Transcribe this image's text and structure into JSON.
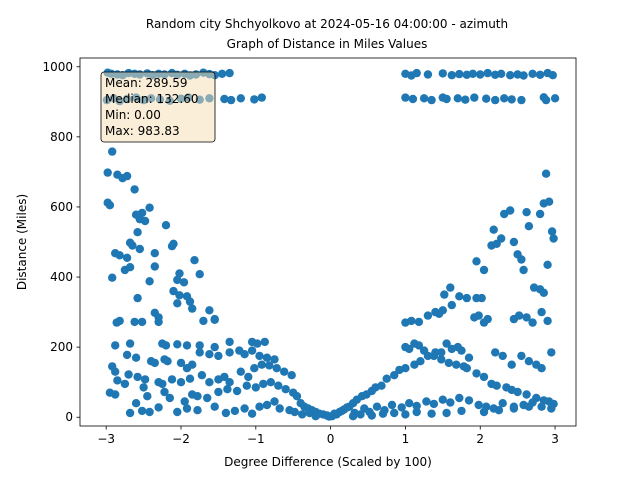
{
  "chart_data": {
    "type": "scatter",
    "title_line1": "Random city Shchyolkovo at 2024-05-16 04:00:00  - azimuth",
    "title_line2": "Graph of Distance in Miles Values",
    "xlabel": "Degree Difference (Scaled by 100)",
    "ylabel": "Distance (Miles)",
    "xlim": [
      -3.35,
      3.28
    ],
    "ylim": [
      -25,
      1025
    ],
    "xticks": [
      -3,
      -2,
      -1,
      0,
      1,
      2,
      3
    ],
    "xtick_labels": [
      "−3",
      "−2",
      "−1",
      "0",
      "1",
      "2",
      "3"
    ],
    "yticks": [
      0,
      200,
      400,
      600,
      800,
      1000
    ],
    "ytick_labels": [
      "0",
      "200",
      "400",
      "600",
      "800",
      "1000"
    ],
    "grid": false,
    "marker_color": "#1f77b4",
    "stats_box": {
      "position": "top-left",
      "lines": [
        "Mean: 289.59",
        "Median: 132.60",
        "Min: 0.00",
        "Max: 983.83"
      ]
    },
    "points": [
      [
        -2.98,
        983
      ],
      [
        -2.93,
        980
      ],
      [
        -2.85,
        978
      ],
      [
        -2.78,
        976
      ],
      [
        -2.7,
        982
      ],
      [
        -2.62,
        980
      ],
      [
        -2.55,
        978
      ],
      [
        -2.45,
        981
      ],
      [
        -2.38,
        976
      ],
      [
        -2.3,
        980
      ],
      [
        -2.22,
        978
      ],
      [
        -2.12,
        982
      ],
      [
        -2.05,
        977
      ],
      [
        -1.95,
        980
      ],
      [
        -1.88,
        975
      ],
      [
        -1.8,
        978
      ],
      [
        -1.7,
        983
      ],
      [
        -1.62,
        979
      ],
      [
        -1.55,
        976
      ],
      [
        -1.45,
        980
      ],
      [
        -1.35,
        982
      ],
      [
        -2.99,
        905
      ],
      [
        -2.9,
        910
      ],
      [
        -2.82,
        902
      ],
      [
        -2.72,
        908
      ],
      [
        -2.6,
        912
      ],
      [
        -2.5,
        905
      ],
      [
        -2.4,
        910
      ],
      [
        -2.28,
        907
      ],
      [
        -2.15,
        903
      ],
      [
        -2.0,
        909
      ],
      [
        -1.9,
        912
      ],
      [
        -1.75,
        906
      ],
      [
        -1.62,
        910
      ],
      [
        -1.42,
        908
      ],
      [
        -1.33,
        905
      ],
      [
        -1.2,
        910
      ],
      [
        -1.02,
        907
      ],
      [
        -0.92,
        912
      ],
      [
        1.0,
        980
      ],
      [
        1.08,
        975
      ],
      [
        1.15,
        982
      ],
      [
        1.3,
        978
      ],
      [
        1.5,
        981
      ],
      [
        1.62,
        976
      ],
      [
        1.72,
        979
      ],
      [
        1.82,
        977
      ],
      [
        1.9,
        980
      ],
      [
        2.0,
        978
      ],
      [
        2.1,
        982
      ],
      [
        2.2,
        977
      ],
      [
        2.28,
        980
      ],
      [
        2.4,
        976
      ],
      [
        2.5,
        978
      ],
      [
        2.58,
        975
      ],
      [
        2.7,
        980
      ],
      [
        2.8,
        977
      ],
      [
        2.9,
        982
      ],
      [
        2.97,
        976
      ],
      [
        1.0,
        912
      ],
      [
        1.1,
        908
      ],
      [
        1.25,
        910
      ],
      [
        1.35,
        905
      ],
      [
        1.5,
        912
      ],
      [
        1.55,
        908
      ],
      [
        1.7,
        910
      ],
      [
        1.8,
        906
      ],
      [
        1.92,
        912
      ],
      [
        2.08,
        909
      ],
      [
        2.2,
        905
      ],
      [
        2.32,
        910
      ],
      [
        2.42,
        907
      ],
      [
        2.55,
        905
      ],
      [
        2.85,
        913
      ],
      [
        2.88,
        905
      ],
      [
        3.0,
        910
      ],
      [
        -2.98,
        698
      ],
      [
        -2.85,
        692
      ],
      [
        -2.78,
        682
      ],
      [
        -2.72,
        688
      ],
      [
        -2.62,
        650
      ],
      [
        -2.92,
        758
      ],
      [
        -2.98,
        612
      ],
      [
        -2.95,
        605
      ],
      [
        -2.52,
        583
      ],
      [
        -2.42,
        598
      ],
      [
        -2.6,
        578
      ],
      [
        -2.55,
        565
      ],
      [
        -2.48,
        560
      ],
      [
        -2.2,
        548
      ],
      [
        -2.58,
        528
      ],
      [
        -2.68,
        498
      ],
      [
        -2.65,
        490
      ],
      [
        -2.1,
        495
      ],
      [
        -2.12,
        488
      ],
      [
        -2.55,
        480
      ],
      [
        -2.72,
        455
      ],
      [
        -2.82,
        462
      ],
      [
        -2.88,
        468
      ],
      [
        -2.75,
        420
      ],
      [
        -2.68,
        428
      ],
      [
        -2.35,
        430
      ],
      [
        -1.82,
        448
      ],
      [
        -2.35,
        468
      ],
      [
        -2.02,
        410
      ],
      [
        -2.05,
        392
      ],
      [
        -1.96,
        385
      ],
      [
        -2.42,
        388
      ],
      [
        -1.75,
        408
      ],
      [
        -2.92,
        398
      ],
      [
        -2.58,
        340
      ],
      [
        -2.1,
        360
      ],
      [
        -2.02,
        348
      ],
      [
        -1.92,
        345
      ],
      [
        -1.88,
        330
      ],
      [
        -2.05,
        325
      ],
      [
        -1.85,
        310
      ],
      [
        -1.62,
        305
      ],
      [
        -1.55,
        280
      ],
      [
        -1.7,
        275
      ],
      [
        -2.35,
        298
      ],
      [
        -2.3,
        285
      ],
      [
        -2.62,
        272
      ],
      [
        -2.52,
        272
      ],
      [
        -2.82,
        275
      ],
      [
        -2.86,
        270
      ],
      [
        -2.3,
        272
      ],
      [
        -1.55,
        278
      ],
      [
        -2.88,
        205
      ],
      [
        -2.68,
        210
      ],
      [
        -2.25,
        210
      ],
      [
        -2.2,
        205
      ],
      [
        -2.05,
        208
      ],
      [
        -1.92,
        205
      ],
      [
        -1.75,
        205
      ],
      [
        -1.55,
        200
      ],
      [
        -1.35,
        215
      ],
      [
        -1.05,
        215
      ],
      [
        -0.98,
        210
      ],
      [
        -0.88,
        215
      ],
      [
        -2.72,
        178
      ],
      [
        -2.6,
        170
      ],
      [
        -2.4,
        160
      ],
      [
        -2.35,
        155
      ],
      [
        -2.22,
        165
      ],
      [
        -2.18,
        160
      ],
      [
        -2.0,
        155
      ],
      [
        -1.92,
        140
      ],
      [
        -1.85,
        150
      ],
      [
        -1.75,
        185
      ],
      [
        -1.62,
        180
      ],
      [
        -1.5,
        175
      ],
      [
        -1.35,
        185
      ],
      [
        -1.22,
        190
      ],
      [
        -1.15,
        180
      ],
      [
        -1.05,
        190
      ],
      [
        -0.95,
        175
      ],
      [
        -0.85,
        170
      ],
      [
        -0.75,
        165
      ],
      [
        -2.92,
        145
      ],
      [
        -2.88,
        130
      ],
      [
        -2.7,
        122
      ],
      [
        -2.58,
        115
      ],
      [
        -2.48,
        108
      ],
      [
        -2.3,
        100
      ],
      [
        -2.25,
        95
      ],
      [
        -2.12,
        108
      ],
      [
        -2.0,
        100
      ],
      [
        -1.88,
        110
      ],
      [
        -1.72,
        120
      ],
      [
        -1.62,
        100
      ],
      [
        -1.5,
        108
      ],
      [
        -1.42,
        115
      ],
      [
        -1.35,
        100
      ],
      [
        -1.2,
        130
      ],
      [
        -1.1,
        115
      ],
      [
        -1.02,
        140
      ],
      [
        -0.92,
        150
      ],
      [
        -0.82,
        148
      ],
      [
        -0.72,
        140
      ],
      [
        -0.62,
        130
      ],
      [
        -0.52,
        120
      ],
      [
        -2.85,
        105
      ],
      [
        -2.75,
        95
      ],
      [
        -2.95,
        70
      ],
      [
        -2.88,
        65
      ],
      [
        -2.6,
        40
      ],
      [
        -2.5,
        85
      ],
      [
        -2.45,
        60
      ],
      [
        -2.22,
        72
      ],
      [
        -2.15,
        55
      ],
      [
        -1.95,
        45
      ],
      [
        -1.85,
        65
      ],
      [
        -1.78,
        60
      ],
      [
        -1.65,
        55
      ],
      [
        -1.5,
        72
      ],
      [
        -1.38,
        80
      ],
      [
        -1.25,
        75
      ],
      [
        -1.12,
        90
      ],
      [
        -1.0,
        85
      ],
      [
        -0.9,
        95
      ],
      [
        -0.8,
        100
      ],
      [
        -0.7,
        90
      ],
      [
        -0.6,
        80
      ],
      [
        -0.5,
        70
      ],
      [
        -0.45,
        60
      ],
      [
        -0.4,
        40
      ],
      [
        -0.35,
        30
      ],
      [
        -0.3,
        25
      ],
      [
        -0.25,
        20
      ],
      [
        -0.2,
        15
      ],
      [
        -0.15,
        10
      ],
      [
        -0.1,
        8
      ],
      [
        -0.05,
        5
      ],
      [
        -0.02,
        2
      ],
      [
        -2.68,
        12
      ],
      [
        -2.52,
        18
      ],
      [
        -2.42,
        15
      ],
      [
        -2.3,
        28
      ],
      [
        -2.05,
        15
      ],
      [
        -1.92,
        25
      ],
      [
        -1.78,
        20
      ],
      [
        -1.55,
        30
      ],
      [
        -1.4,
        12
      ],
      [
        -1.28,
        18
      ],
      [
        -1.15,
        25
      ],
      [
        -1.05,
        10
      ],
      [
        -0.95,
        30
      ],
      [
        -0.85,
        35
      ],
      [
        -0.75,
        45
      ],
      [
        -0.68,
        25
      ],
      [
        -0.55,
        20
      ],
      [
        -0.48,
        15
      ],
      [
        -0.38,
        8
      ],
      [
        -0.28,
        12
      ],
      [
        -0.2,
        3
      ],
      [
        0.02,
        3
      ],
      [
        0.08,
        8
      ],
      [
        0.12,
        15
      ],
      [
        0.18,
        22
      ],
      [
        0.25,
        30
      ],
      [
        0.3,
        40
      ],
      [
        0.35,
        50
      ],
      [
        0.42,
        60
      ],
      [
        0.48,
        65
      ],
      [
        0.55,
        75
      ],
      [
        0.6,
        85
      ],
      [
        0.68,
        90
      ],
      [
        0.75,
        110
      ],
      [
        0.85,
        120
      ],
      [
        0.92,
        135
      ],
      [
        1.0,
        140
      ],
      [
        1.12,
        150
      ],
      [
        1.2,
        160
      ],
      [
        1.3,
        175
      ],
      [
        1.4,
        185
      ],
      [
        1.48,
        165
      ],
      [
        1.58,
        155
      ],
      [
        1.68,
        150
      ],
      [
        1.78,
        145
      ],
      [
        1.82,
        140
      ],
      [
        1.95,
        125
      ],
      [
        2.05,
        115
      ],
      [
        2.15,
        95
      ],
      [
        2.22,
        90
      ],
      [
        2.35,
        85
      ],
      [
        2.42,
        78
      ],
      [
        2.5,
        72
      ],
      [
        2.62,
        65
      ],
      [
        2.75,
        55
      ],
      [
        2.85,
        48
      ],
      [
        2.92,
        45
      ],
      [
        2.98,
        38
      ],
      [
        0.05,
        10
      ],
      [
        0.15,
        18
      ],
      [
        0.22,
        28
      ],
      [
        0.32,
        12
      ],
      [
        0.45,
        25
      ],
      [
        0.52,
        15
      ],
      [
        0.62,
        30
      ],
      [
        0.72,
        20
      ],
      [
        0.82,
        35
      ],
      [
        0.95,
        28
      ],
      [
        1.05,
        40
      ],
      [
        1.15,
        32
      ],
      [
        1.28,
        45
      ],
      [
        1.38,
        38
      ],
      [
        1.5,
        50
      ],
      [
        1.6,
        42
      ],
      [
        1.72,
        55
      ],
      [
        1.85,
        48
      ],
      [
        1.98,
        35
      ],
      [
        2.08,
        30
      ],
      [
        2.18,
        25
      ],
      [
        2.3,
        40
      ],
      [
        2.45,
        30
      ],
      [
        2.58,
        35
      ],
      [
        2.7,
        42
      ],
      [
        2.82,
        30
      ],
      [
        2.95,
        25
      ],
      [
        0.3,
        3
      ],
      [
        0.4,
        8
      ],
      [
        0.55,
        5
      ],
      [
        0.7,
        10
      ],
      [
        0.85,
        12
      ],
      [
        1.0,
        8
      ],
      [
        1.15,
        15
      ],
      [
        1.35,
        10
      ],
      [
        1.55,
        12
      ],
      [
        1.75,
        18
      ],
      [
        2.05,
        15
      ],
      [
        2.25,
        20
      ],
      [
        2.45,
        25
      ],
      [
        2.65,
        30
      ],
      [
        1.0,
        270
      ],
      [
        1.08,
        275
      ],
      [
        1.18,
        272
      ],
      [
        1.3,
        290
      ],
      [
        1.4,
        300
      ],
      [
        1.5,
        305
      ],
      [
        1.62,
        320
      ],
      [
        1.72,
        345
      ],
      [
        1.82,
        340
      ],
      [
        1.92,
        285
      ],
      [
        1.98,
        290
      ],
      [
        2.05,
        270
      ],
      [
        2.1,
        280
      ],
      [
        2.45,
        280
      ],
      [
        2.52,
        290
      ],
      [
        2.62,
        285
      ],
      [
        2.7,
        270
      ],
      [
        2.82,
        300
      ],
      [
        2.9,
        275
      ],
      [
        1.45,
        295
      ],
      [
        1.6,
        370
      ],
      [
        1.52,
        350
      ],
      [
        1.95,
        340
      ],
      [
        2.02,
        340
      ],
      [
        1.95,
        445
      ],
      [
        2.05,
        420
      ],
      [
        2.15,
        490
      ],
      [
        2.18,
        535
      ],
      [
        2.22,
        495
      ],
      [
        2.28,
        510
      ],
      [
        2.32,
        580
      ],
      [
        2.4,
        590
      ],
      [
        2.45,
        500
      ],
      [
        2.5,
        465
      ],
      [
        2.55,
        450
      ],
      [
        2.62,
        585
      ],
      [
        2.65,
        545
      ],
      [
        2.8,
        580
      ],
      [
        2.85,
        610
      ],
      [
        2.92,
        615
      ],
      [
        2.96,
        530
      ],
      [
        2.98,
        510
      ],
      [
        2.9,
        435
      ],
      [
        2.72,
        370
      ],
      [
        2.8,
        365
      ],
      [
        2.85,
        355
      ],
      [
        2.88,
        695
      ],
      [
        2.58,
        420
      ],
      [
        1.0,
        200
      ],
      [
        1.05,
        195
      ],
      [
        1.12,
        210
      ],
      [
        1.18,
        205
      ],
      [
        1.25,
        190
      ],
      [
        1.38,
        175
      ],
      [
        1.48,
        185
      ],
      [
        1.55,
        210
      ],
      [
        1.62,
        195
      ],
      [
        1.7,
        200
      ],
      [
        1.75,
        190
      ],
      [
        1.85,
        170
      ],
      [
        2.2,
        185
      ],
      [
        2.3,
        175
      ],
      [
        2.42,
        150
      ],
      [
        2.55,
        175
      ],
      [
        2.65,
        160
      ],
      [
        2.75,
        150
      ],
      [
        2.82,
        140
      ],
      [
        2.95,
        185
      ]
    ]
  }
}
